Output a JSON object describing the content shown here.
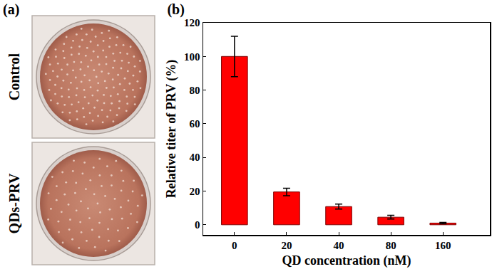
{
  "chart_data": {
    "type": "bar",
    "title": "(b)",
    "x_label": "QD concentration (nM)",
    "y_label": "Relative titer of PRV (%)",
    "categories": [
      "0",
      "20",
      "40",
      "80",
      "160"
    ],
    "values": [
      100,
      19.5,
      10.8,
      4.5,
      1.0
    ],
    "errors": [
      12,
      2.2,
      1.5,
      1.1,
      0.4
    ],
    "color": "#ff0000",
    "ylim": [
      -6,
      120
    ],
    "yticks": [
      0,
      20,
      40,
      60,
      80,
      100,
      120
    ],
    "grid": false
  },
  "panel_a": {
    "label": "(a)",
    "rows": [
      "Control",
      "QDs-PRV"
    ]
  }
}
